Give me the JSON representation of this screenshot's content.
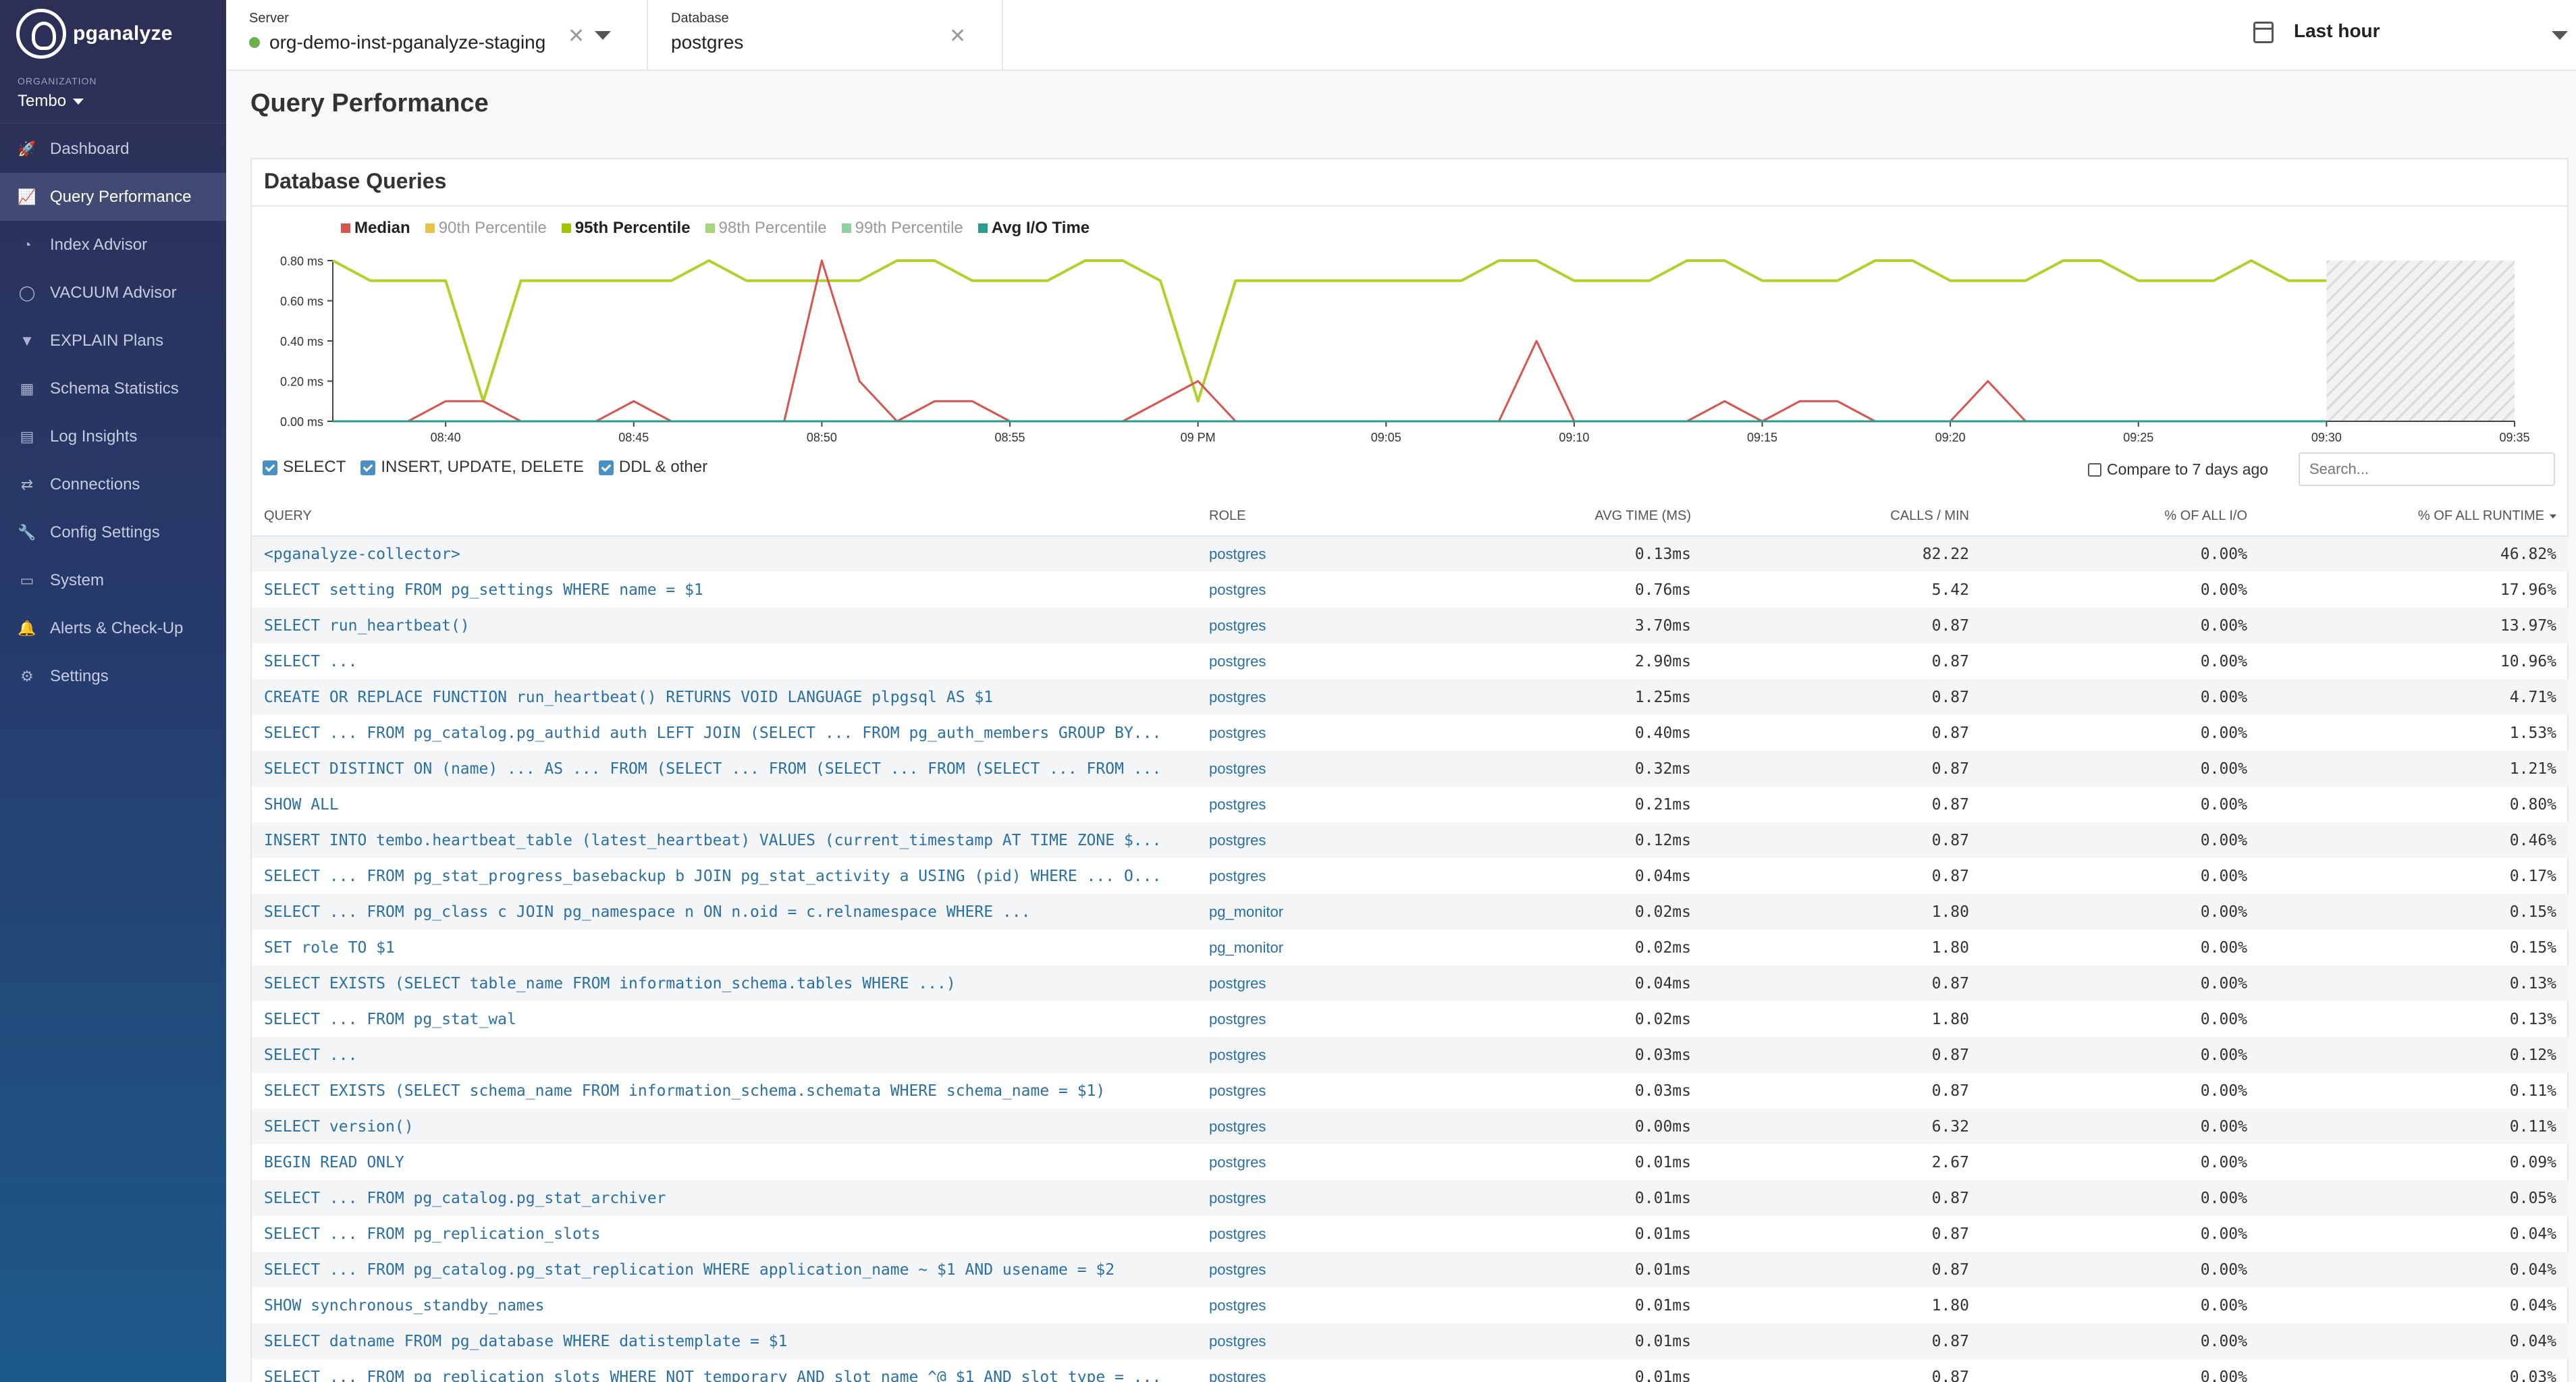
{
  "brand": {
    "name": "pganalyze"
  },
  "org": {
    "caption": "ORGANIZATION",
    "name": "Tembo"
  },
  "nav": [
    {
      "label": "Dashboard",
      "icon": "rocket-icon",
      "glyph": "🚀"
    },
    {
      "label": "Query Performance",
      "icon": "chart-line-icon",
      "glyph": "📈"
    },
    {
      "label": "Index Advisor",
      "icon": "index-icon",
      "glyph": "◔"
    },
    {
      "label": "VACUUM Advisor",
      "icon": "vacuum-icon",
      "glyph": "◯"
    },
    {
      "label": "EXPLAIN Plans",
      "icon": "filter-icon",
      "glyph": "▼"
    },
    {
      "label": "Schema Statistics",
      "icon": "table-icon",
      "glyph": "▦"
    },
    {
      "label": "Log Insights",
      "icon": "log-icon",
      "glyph": "▤"
    },
    {
      "label": "Connections",
      "icon": "connections-icon",
      "glyph": "⇄"
    },
    {
      "label": "Config Settings",
      "icon": "wrench-icon",
      "glyph": "🔧"
    },
    {
      "label": "System",
      "icon": "server-icon",
      "glyph": "▭"
    },
    {
      "label": "Alerts & Check-Up",
      "icon": "bell-icon",
      "glyph": "🔔"
    },
    {
      "label": "Settings",
      "icon": "gear-icon",
      "glyph": "⚙"
    }
  ],
  "topbar": {
    "server": {
      "caption": "Server",
      "value": "org-demo-inst-pganalyze-staging"
    },
    "database": {
      "caption": "Database",
      "value": "postgres"
    },
    "time": {
      "label": "Last hour"
    }
  },
  "page": {
    "title": "Query Performance"
  },
  "panel": {
    "title": "Database Queries"
  },
  "chart_data": {
    "type": "line",
    "title": "",
    "xlabel": "",
    "ylabel": "",
    "ylim": [
      0,
      0.8
    ],
    "y_ticks": [
      "0.00 ms",
      "0.20 ms",
      "0.40 ms",
      "0.60 ms",
      "0.80 ms"
    ],
    "x_ticks": [
      "08:40",
      "08:45",
      "08:50",
      "08:55",
      "09 PM",
      "09:05",
      "09:10",
      "09:15",
      "09:20",
      "09:25",
      "09:30",
      "09:35"
    ],
    "x_minutes_range": [
      0,
      58
    ],
    "grid": false,
    "legend_placement": "top-left",
    "no_data_region_start_minute": 53,
    "legend": [
      {
        "name": "Median",
        "color": "#d9534f"
      },
      {
        "name": "90th Percentile",
        "color": "#e8c34a"
      },
      {
        "name": "95th Percentile",
        "color": "#a5c400"
      },
      {
        "name": "98th Percentile",
        "color": "#a8d67a"
      },
      {
        "name": "99th Percentile",
        "color": "#8fd19e"
      },
      {
        "name": "Avg I/O Time",
        "color": "#2a9d8f"
      }
    ],
    "series": [
      {
        "name": "95th Percentile",
        "color": "#b5cf2a",
        "x": [
          0,
          1,
          2,
          3,
          4,
          5,
          6,
          7,
          8,
          9,
          10,
          11,
          12,
          13,
          14,
          15,
          16,
          17,
          18,
          19,
          20,
          21,
          22,
          23,
          24,
          25,
          26,
          27,
          28,
          29,
          30,
          31,
          32,
          33,
          34,
          35,
          36,
          37,
          38,
          39,
          40,
          41,
          42,
          43,
          44,
          45,
          46,
          47,
          48,
          49,
          50,
          51,
          52,
          53
        ],
        "y": [
          0.8,
          0.7,
          0.7,
          0.7,
          0.1,
          0.7,
          0.7,
          0.7,
          0.7,
          0.7,
          0.8,
          0.7,
          0.7,
          0.7,
          0.7,
          0.8,
          0.8,
          0.7,
          0.7,
          0.7,
          0.8,
          0.8,
          0.7,
          0.1,
          0.7,
          0.7,
          0.7,
          0.7,
          0.7,
          0.7,
          0.7,
          0.8,
          0.8,
          0.7,
          0.7,
          0.7,
          0.8,
          0.8,
          0.7,
          0.7,
          0.7,
          0.8,
          0.8,
          0.7,
          0.7,
          0.7,
          0.8,
          0.8,
          0.7,
          0.7,
          0.7,
          0.8,
          0.7,
          0.7
        ]
      },
      {
        "name": "Median",
        "color": "#d9534f",
        "x": [
          0,
          1,
          2,
          3,
          4,
          5,
          6,
          7,
          8,
          9,
          10,
          11,
          12,
          13,
          14,
          15,
          16,
          17,
          18,
          19,
          20,
          21,
          22,
          23,
          24,
          25,
          26,
          27,
          28,
          29,
          30,
          31,
          32,
          33,
          34,
          35,
          36,
          37,
          38,
          39,
          40,
          41,
          42,
          43,
          44,
          45,
          46,
          47,
          48,
          49,
          50,
          51,
          52,
          53
        ],
        "y": [
          0,
          0,
          0,
          0.1,
          0.1,
          0,
          0,
          0,
          0.1,
          0,
          0,
          0,
          0,
          0.8,
          0.2,
          0,
          0.1,
          0.1,
          0,
          0,
          0,
          0,
          0.1,
          0.2,
          0,
          0,
          0,
          0,
          0,
          0,
          0,
          0,
          0.4,
          0,
          0,
          0,
          0,
          0.1,
          0,
          0.1,
          0.1,
          0,
          0,
          0,
          0.2,
          0,
          0,
          0,
          0,
          0,
          0,
          0,
          0,
          0
        ]
      },
      {
        "name": "Avg I/O Time",
        "color": "#2a9d8f",
        "x": [
          0,
          53
        ],
        "y": [
          0,
          0
        ]
      }
    ]
  },
  "filters": {
    "select": "SELECT",
    "dml": "INSERT, UPDATE, DELETE",
    "ddl": "DDL & other",
    "compare": "Compare to 7 days ago",
    "search_placeholder": "Search..."
  },
  "table": {
    "headers": {
      "query": "QUERY",
      "role": "ROLE",
      "avg": "AVG TIME (MS)",
      "calls": "CALLS / MIN",
      "io": "% OF ALL I/O",
      "runtime": "% OF ALL RUNTIME"
    },
    "rows": [
      {
        "query": "<pganalyze-collector>",
        "role": "postgres",
        "avg": "0.13ms",
        "calls": "82.22",
        "io": "0.00%",
        "runtime": "46.82%"
      },
      {
        "query": "SELECT setting FROM pg_settings WHERE name = $1",
        "role": "postgres",
        "avg": "0.76ms",
        "calls": "5.42",
        "io": "0.00%",
        "runtime": "17.96%"
      },
      {
        "query": "SELECT run_heartbeat()",
        "role": "postgres",
        "avg": "3.70ms",
        "calls": "0.87",
        "io": "0.00%",
        "runtime": "13.97%"
      },
      {
        "query": "SELECT ...",
        "role": "postgres",
        "avg": "2.90ms",
        "calls": "0.87",
        "io": "0.00%",
        "runtime": "10.96%"
      },
      {
        "query": "CREATE OR REPLACE FUNCTION run_heartbeat() RETURNS VOID LANGUAGE plpgsql AS $1",
        "role": "postgres",
        "avg": "1.25ms",
        "calls": "0.87",
        "io": "0.00%",
        "runtime": "4.71%"
      },
      {
        "query": "SELECT ... FROM pg_catalog.pg_authid auth LEFT JOIN (SELECT ... FROM pg_auth_members GROUP BY...",
        "role": "postgres",
        "avg": "0.40ms",
        "calls": "0.87",
        "io": "0.00%",
        "runtime": "1.53%"
      },
      {
        "query": "SELECT DISTINCT ON (name) ... AS ... FROM (SELECT ... FROM (SELECT ... FROM (SELECT ... FROM ...",
        "role": "postgres",
        "avg": "0.32ms",
        "calls": "0.87",
        "io": "0.00%",
        "runtime": "1.21%"
      },
      {
        "query": "SHOW ALL",
        "role": "postgres",
        "avg": "0.21ms",
        "calls": "0.87",
        "io": "0.00%",
        "runtime": "0.80%"
      },
      {
        "query": "INSERT INTO tembo.heartbeat_table (latest_heartbeat) VALUES (current_timestamp AT TIME ZONE $...",
        "role": "postgres",
        "avg": "0.12ms",
        "calls": "0.87",
        "io": "0.00%",
        "runtime": "0.46%"
      },
      {
        "query": "SELECT ... FROM pg_stat_progress_basebackup b JOIN pg_stat_activity a USING (pid) WHERE ... O...",
        "role": "postgres",
        "avg": "0.04ms",
        "calls": "0.87",
        "io": "0.00%",
        "runtime": "0.17%"
      },
      {
        "query": "SELECT ... FROM pg_class c JOIN pg_namespace n ON n.oid = c.relnamespace WHERE ...",
        "role": "pg_monitor",
        "avg": "0.02ms",
        "calls": "1.80",
        "io": "0.00%",
        "runtime": "0.15%"
      },
      {
        "query": "SET role TO $1",
        "role": "pg_monitor",
        "avg": "0.02ms",
        "calls": "1.80",
        "io": "0.00%",
        "runtime": "0.15%"
      },
      {
        "query": "SELECT EXISTS (SELECT table_name FROM information_schema.tables WHERE ...)",
        "role": "postgres",
        "avg": "0.04ms",
        "calls": "0.87",
        "io": "0.00%",
        "runtime": "0.13%"
      },
      {
        "query": "SELECT ... FROM pg_stat_wal",
        "role": "postgres",
        "avg": "0.02ms",
        "calls": "1.80",
        "io": "0.00%",
        "runtime": "0.13%"
      },
      {
        "query": "SELECT ...",
        "role": "postgres",
        "avg": "0.03ms",
        "calls": "0.87",
        "io": "0.00%",
        "runtime": "0.12%"
      },
      {
        "query": "SELECT EXISTS (SELECT schema_name FROM information_schema.schemata WHERE schema_name = $1)",
        "role": "postgres",
        "avg": "0.03ms",
        "calls": "0.87",
        "io": "0.00%",
        "runtime": "0.11%"
      },
      {
        "query": "SELECT version()",
        "role": "postgres",
        "avg": "0.00ms",
        "calls": "6.32",
        "io": "0.00%",
        "runtime": "0.11%"
      },
      {
        "query": "BEGIN READ ONLY",
        "role": "postgres",
        "avg": "0.01ms",
        "calls": "2.67",
        "io": "0.00%",
        "runtime": "0.09%"
      },
      {
        "query": "SELECT ... FROM pg_catalog.pg_stat_archiver",
        "role": "postgres",
        "avg": "0.01ms",
        "calls": "0.87",
        "io": "0.00%",
        "runtime": "0.05%"
      },
      {
        "query": "SELECT ... FROM pg_replication_slots",
        "role": "postgres",
        "avg": "0.01ms",
        "calls": "0.87",
        "io": "0.00%",
        "runtime": "0.04%"
      },
      {
        "query": "SELECT ... FROM pg_catalog.pg_stat_replication WHERE application_name ~ $1 AND usename = $2",
        "role": "postgres",
        "avg": "0.01ms",
        "calls": "0.87",
        "io": "0.00%",
        "runtime": "0.04%"
      },
      {
        "query": "SHOW synchronous_standby_names",
        "role": "postgres",
        "avg": "0.01ms",
        "calls": "1.80",
        "io": "0.00%",
        "runtime": "0.04%"
      },
      {
        "query": "SELECT datname FROM pg_database WHERE datistemplate = $1",
        "role": "postgres",
        "avg": "0.01ms",
        "calls": "0.87",
        "io": "0.00%",
        "runtime": "0.04%"
      },
      {
        "query": "SELECT ... FROM pg_replication_slots WHERE NOT temporary AND slot_name ^@ $1 AND slot_type = ...",
        "role": "postgres",
        "avg": "0.01ms",
        "calls": "0.87",
        "io": "0.00%",
        "runtime": "0.03%"
      }
    ]
  }
}
